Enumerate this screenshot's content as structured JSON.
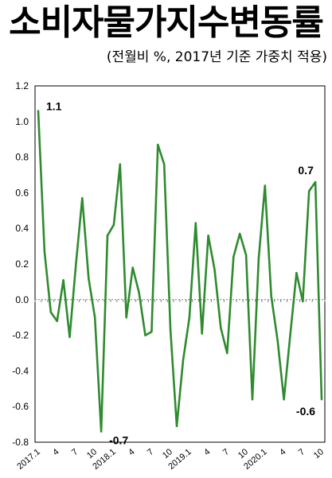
{
  "header": {
    "title": "소비자물가지수변동률",
    "subtitle": "(전월비 %, 2017년 기준 가중치 적용)"
  },
  "chart_data": {
    "type": "line",
    "title": "소비자물가지수변동률",
    "subtitle": "(전월비 %, 2017년 기준 가중치 적용)",
    "xlabel": "",
    "ylabel": "",
    "ylim": [
      -0.8,
      1.2
    ],
    "yticks": [
      "1.2",
      "1.0",
      "0.8",
      "0.6",
      "0.4",
      "0.2",
      "0.0",
      "-0.2",
      "-0.4",
      "-0.6",
      "-0.8"
    ],
    "x_tick_labels": [
      "2017.1",
      "4",
      "7",
      "10",
      "2018.1",
      "4",
      "7",
      "10",
      "2019.1",
      "4",
      "7",
      "10",
      "2020.1",
      "4",
      "7",
      "10"
    ],
    "grid": false,
    "line_color": "#2e8b2e",
    "series": [
      {
        "values": [
          1.06,
          0.27,
          -0.07,
          -0.12,
          0.11,
          -0.21,
          0.2,
          0.57,
          0.12,
          -0.1,
          -0.74,
          0.36,
          0.42,
          0.76,
          -0.1,
          0.18,
          0.04,
          -0.2,
          -0.18,
          0.87,
          0.76,
          -0.17,
          -0.71,
          -0.34,
          -0.1,
          0.43,
          -0.19,
          0.36,
          0.17,
          -0.16,
          -0.3,
          0.24,
          0.37,
          0.25,
          -0.56,
          0.23,
          0.64,
          0.02,
          -0.23,
          -0.56,
          -0.2,
          0.15,
          -0.01,
          0.61,
          0.66,
          -0.56
        ]
      }
    ],
    "data_labels": [
      {
        "index": 0,
        "text": "1.1"
      },
      {
        "index": 10,
        "text": "-0.7"
      },
      {
        "index": 44,
        "text": "0.7"
      },
      {
        "index": 45,
        "text": "-0.6"
      }
    ]
  }
}
